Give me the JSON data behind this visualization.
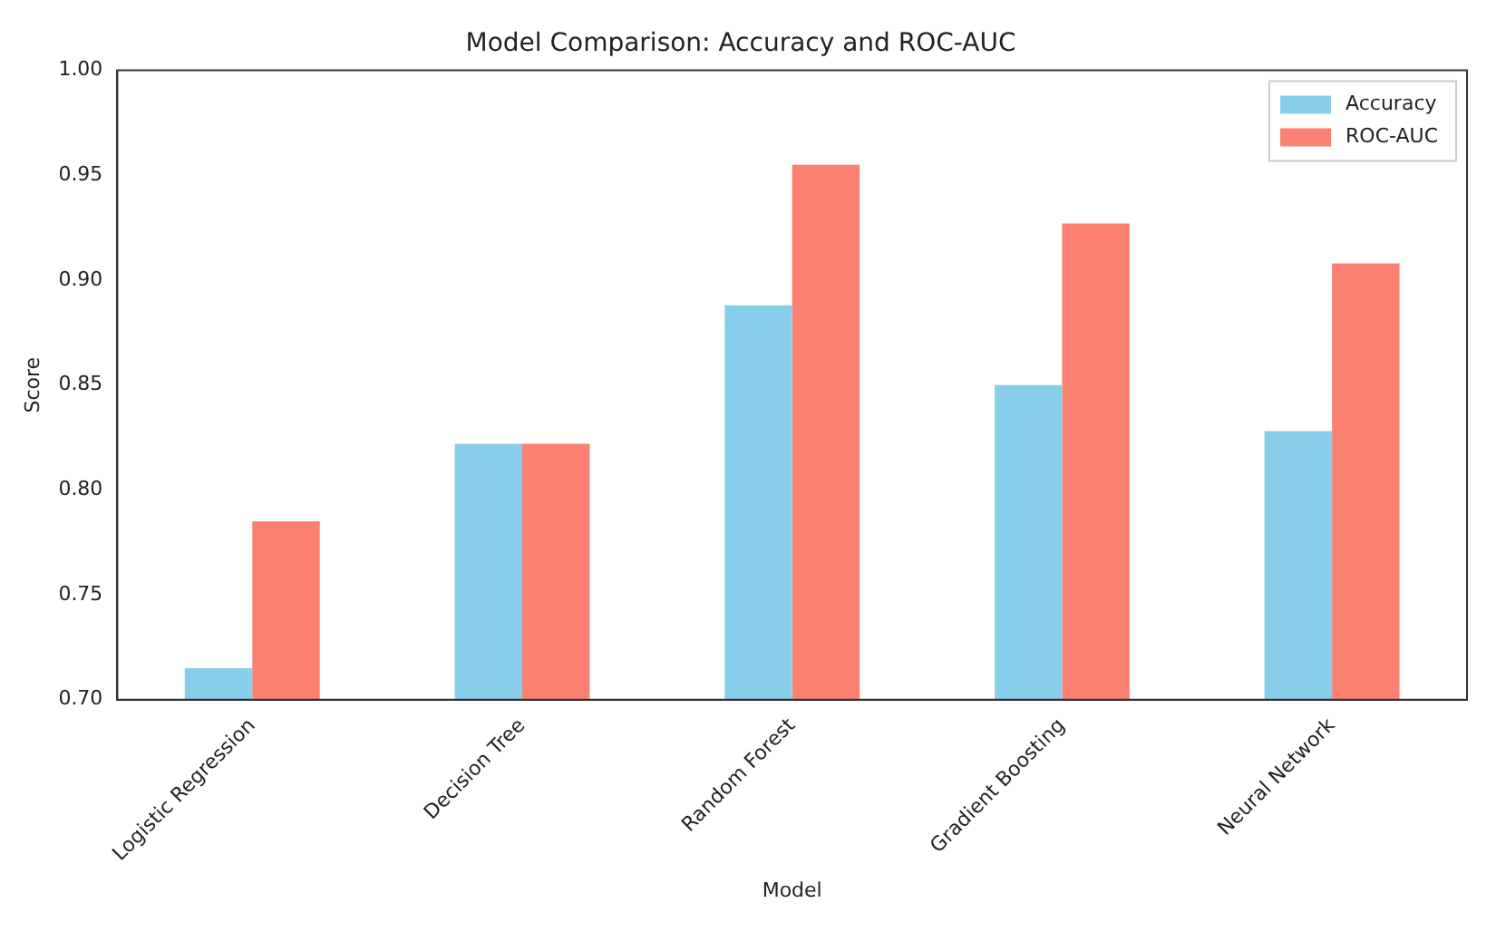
{
  "chart_data": {
    "type": "bar",
    "title": "Model Comparison: Accuracy and ROC-AUC",
    "xlabel": "Model",
    "ylabel": "Score",
    "categories": [
      "Logistic Regression",
      "Decision Tree",
      "Random Forest",
      "Gradient Boosting",
      "Neural Network"
    ],
    "series": [
      {
        "name": "Accuracy",
        "color": "#87ceeb",
        "values": [
          0.715,
          0.822,
          0.888,
          0.85,
          0.828
        ]
      },
      {
        "name": "ROC-AUC",
        "color": "#fa8072",
        "values": [
          0.785,
          0.822,
          0.955,
          0.927,
          0.908
        ]
      }
    ],
    "ylim": [
      0.7,
      1.0
    ],
    "yticks": [
      {
        "value": 0.7,
        "label": "0.70"
      },
      {
        "value": 0.75,
        "label": "0.75"
      },
      {
        "value": 0.8,
        "label": "0.80"
      },
      {
        "value": 0.85,
        "label": "0.85"
      },
      {
        "value": 0.9,
        "label": "0.90"
      },
      {
        "value": 0.95,
        "label": "0.95"
      },
      {
        "value": 1.0,
        "label": "1.00"
      }
    ],
    "grid": false,
    "legend": "top right"
  }
}
